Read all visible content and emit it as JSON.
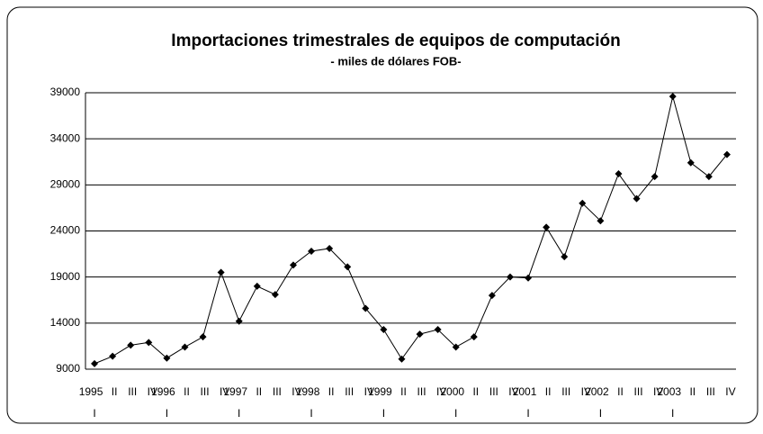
{
  "chart_data": {
    "type": "line",
    "title": "Importaciones trimestrales de equipos de computación",
    "subtitle": "- miles de dólares FOB-",
    "years": [
      "1995",
      "1996",
      "1997",
      "1998",
      "1999",
      "2000",
      "2001",
      "2002",
      "2003"
    ],
    "categories": [
      "I",
      "II",
      "III",
      "IV",
      "I",
      "II",
      "III",
      "IV",
      "I",
      "II",
      "III",
      "IV",
      "I",
      "II",
      "III",
      "IV",
      "I",
      "II",
      "III",
      "IV",
      "I",
      "II",
      "III",
      "IV",
      "I",
      "II",
      "III",
      "IV",
      "I",
      "II",
      "III",
      "IV",
      "I",
      "II",
      "III",
      "IV"
    ],
    "series": [
      {
        "name": "Importaciones",
        "color": "#000000",
        "values": [
          9600,
          10400,
          11600,
          11900,
          10200,
          11400,
          12500,
          19500,
          14200,
          18000,
          17100,
          20300,
          21800,
          22100,
          20100,
          15600,
          13300,
          10100,
          12800,
          13300,
          11400,
          12500,
          17000,
          19000,
          18900,
          24400,
          21200,
          27000,
          25100,
          30200,
          27500,
          29900,
          38600,
          31400,
          29900,
          32300
        ]
      }
    ],
    "ylim": [
      9000,
      39000
    ],
    "yticks": [
      9000,
      14000,
      19000,
      24000,
      29000,
      34000,
      39000
    ],
    "grid": true
  }
}
